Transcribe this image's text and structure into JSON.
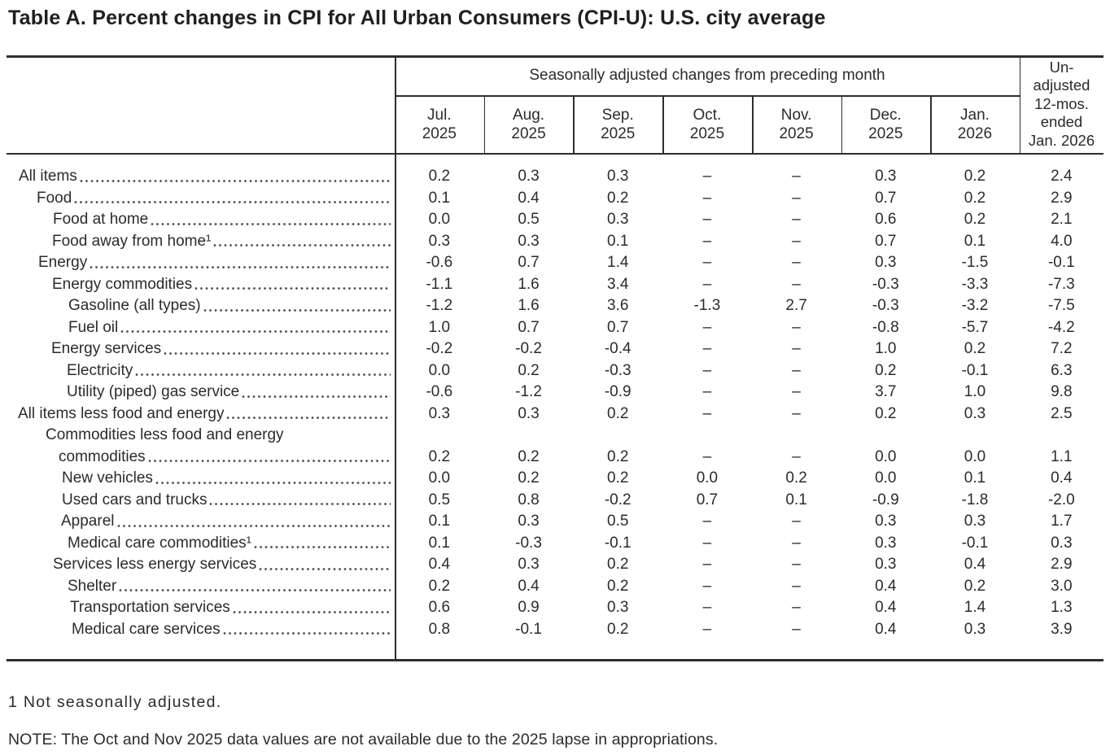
{
  "title": "Table A. Percent changes in CPI for All Urban Consumers (CPI-U): U.S. city average",
  "table": {
    "group_header": "Seasonally adjusted changes from preceding month",
    "month_columns": [
      {
        "line1": "Jul.",
        "line2": "2025"
      },
      {
        "line1": "Aug.",
        "line2": "2025"
      },
      {
        "line1": "Sep.",
        "line2": "2025"
      },
      {
        "line1": "Oct.",
        "line2": "2025"
      },
      {
        "line1": "Nov.",
        "line2": "2025"
      },
      {
        "line1": "Dec.",
        "line2": "2025"
      },
      {
        "line1": "Jan.",
        "line2": "2026"
      }
    ],
    "last_column_header_lines": [
      "Un-",
      "adjusted",
      "12-mos.",
      "ended",
      "Jan. 2026"
    ],
    "missing_value_symbol": "–",
    "rows": [
      {
        "label": "All items",
        "indent": 15,
        "values": [
          "0.2",
          "0.3",
          "0.3",
          "–",
          "–",
          "0.3",
          "0.2",
          "2.4"
        ]
      },
      {
        "label": "Food",
        "indent": 37,
        "values": [
          "0.1",
          "0.4",
          "0.2",
          "–",
          "–",
          "0.7",
          "0.2",
          "2.9"
        ]
      },
      {
        "label": "Food at home",
        "indent": 57,
        "values": [
          "0.0",
          "0.5",
          "0.3",
          "–",
          "–",
          "0.6",
          "0.2",
          "2.1"
        ]
      },
      {
        "label": "Food away from home¹",
        "indent": 56,
        "values": [
          "0.3",
          "0.3",
          "0.1",
          "–",
          "–",
          "0.7",
          "0.1",
          "4.0"
        ]
      },
      {
        "label": "Energy",
        "indent": 39,
        "values": [
          "-0.6",
          "0.7",
          "1.4",
          "–",
          "–",
          "0.3",
          "-1.5",
          "-0.1"
        ]
      },
      {
        "label": "Energy commodities",
        "indent": 56,
        "values": [
          "-1.1",
          "1.6",
          "3.4",
          "–",
          "–",
          "-0.3",
          "-3.3",
          "-7.3"
        ]
      },
      {
        "label": "Gasoline (all types)",
        "indent": 76,
        "values": [
          "-1.2",
          "1.6",
          "3.6",
          "-1.3",
          "2.7",
          "-0.3",
          "-3.2",
          "-7.5"
        ]
      },
      {
        "label": "Fuel oil",
        "indent": 76,
        "values": [
          "1.0",
          "0.7",
          "0.7",
          "–",
          "–",
          "-0.8",
          "-5.7",
          "-4.2"
        ]
      },
      {
        "label": "Energy services",
        "indent": 55,
        "values": [
          "-0.2",
          "-0.2",
          "-0.4",
          "–",
          "–",
          "1.0",
          "0.2",
          "7.2"
        ]
      },
      {
        "label": "Electricity",
        "indent": 74,
        "values": [
          "0.0",
          "0.2",
          "-0.3",
          "–",
          "–",
          "0.2",
          "-0.1",
          "6.3"
        ]
      },
      {
        "label": "Utility (piped) gas service",
        "indent": 74,
        "values": [
          "-0.6",
          "-1.2",
          "-0.9",
          "–",
          "–",
          "3.7",
          "1.0",
          "9.8"
        ]
      },
      {
        "label": "All items less food and energy",
        "indent": 14,
        "values": [
          "0.3",
          "0.3",
          "0.2",
          "–",
          "–",
          "0.2",
          "0.3",
          "2.5"
        ]
      },
      {
        "label": "Commodities less food and energy",
        "label2": "commodities",
        "indent": 48,
        "indent2": 64,
        "values": [
          "0.2",
          "0.2",
          "0.2",
          "–",
          "–",
          "0.0",
          "0.0",
          "1.1"
        ]
      },
      {
        "label": "New vehicles",
        "indent": 68,
        "values": [
          "0.0",
          "0.2",
          "0.2",
          "0.0",
          "0.2",
          "0.0",
          "0.1",
          "0.4"
        ]
      },
      {
        "label": "Used cars and trucks",
        "indent": 68,
        "values": [
          "0.5",
          "0.8",
          "-0.2",
          "0.7",
          "0.1",
          "-0.9",
          "-1.8",
          "-2.0"
        ]
      },
      {
        "label": "Apparel",
        "indent": 67,
        "values": [
          "0.1",
          "0.3",
          "0.5",
          "–",
          "–",
          "0.3",
          "0.3",
          "1.7"
        ]
      },
      {
        "label": "Medical care commodities¹",
        "indent": 75,
        "values": [
          "0.1",
          "-0.3",
          "-0.1",
          "–",
          "–",
          "0.3",
          "-0.1",
          "0.3"
        ]
      },
      {
        "label": "Services less energy services",
        "indent": 57,
        "values": [
          "0.4",
          "0.3",
          "0.2",
          "–",
          "–",
          "0.3",
          "0.4",
          "2.9"
        ]
      },
      {
        "label": "Shelter",
        "indent": 75,
        "values": [
          "0.2",
          "0.4",
          "0.2",
          "–",
          "–",
          "0.4",
          "0.2",
          "3.0"
        ]
      },
      {
        "label": "Transportation services",
        "indent": 78,
        "values": [
          "0.6",
          "0.9",
          "0.3",
          "–",
          "–",
          "0.4",
          "1.4",
          "1.3"
        ]
      },
      {
        "label": "Medical care services",
        "indent": 80,
        "values": [
          "0.8",
          "-0.1",
          "0.2",
          "–",
          "–",
          "0.4",
          "0.3",
          "3.9"
        ]
      }
    ]
  },
  "footnotes": {
    "footnote1": "1 Not seasonally adjusted.",
    "note": "NOTE: The Oct and Nov 2025 data values are not available due to the 2025 lapse in appropriations."
  },
  "colors": {
    "text": "#2b2b2b",
    "rule": "#2e2e2e",
    "background": "#ffffff"
  }
}
